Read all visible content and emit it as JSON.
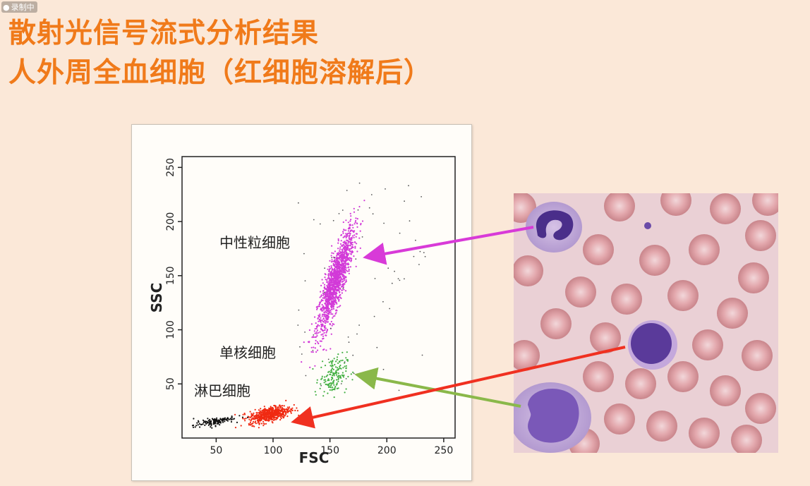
{
  "watermark": "录制中",
  "title_line1": "散射光信号流式分析结果",
  "title_line2": "人外周全血细胞（红细胞溶解后）",
  "colors": {
    "title": "#f07a1a",
    "neutrophil": "#d23ad8",
    "monocyte": "#43b043",
    "lymphocyte": "#f02a12",
    "debris": "#111111",
    "arrow_neutrophil": "#d83ad8",
    "arrow_monocyte": "#8ab84a",
    "arrow_lymphocyte": "#f03020"
  },
  "chart_data": {
    "type": "scatter",
    "title": "",
    "xlabel": "FSC",
    "ylabel": "SSC",
    "xlim": [
      20,
      260
    ],
    "ylim": [
      0,
      260
    ],
    "xticks": [
      50,
      100,
      150,
      200,
      250
    ],
    "yticks": [
      50,
      100,
      150,
      200,
      250
    ],
    "grid": false,
    "populations": [
      {
        "name": "中性粒细胞",
        "center": [
          155,
          145
        ],
        "spread": [
          8,
          24
        ],
        "corr": 0.85,
        "count": 1400,
        "color": "#d23ad8"
      },
      {
        "name": "单核细胞",
        "center": [
          153,
          58
        ],
        "spread": [
          6,
          9
        ],
        "corr": 0.2,
        "count": 160,
        "color": "#43b043"
      },
      {
        "name": "淋巴细胞",
        "center": [
          97,
          22
        ],
        "spread": [
          9,
          4
        ],
        "corr": 0.55,
        "count": 550,
        "color": "#f02a12"
      },
      {
        "name": "",
        "center": [
          48,
          15
        ],
        "spread": [
          9,
          2.5
        ],
        "corr": 0.7,
        "count": 130,
        "color": "#111111"
      }
    ]
  }
}
